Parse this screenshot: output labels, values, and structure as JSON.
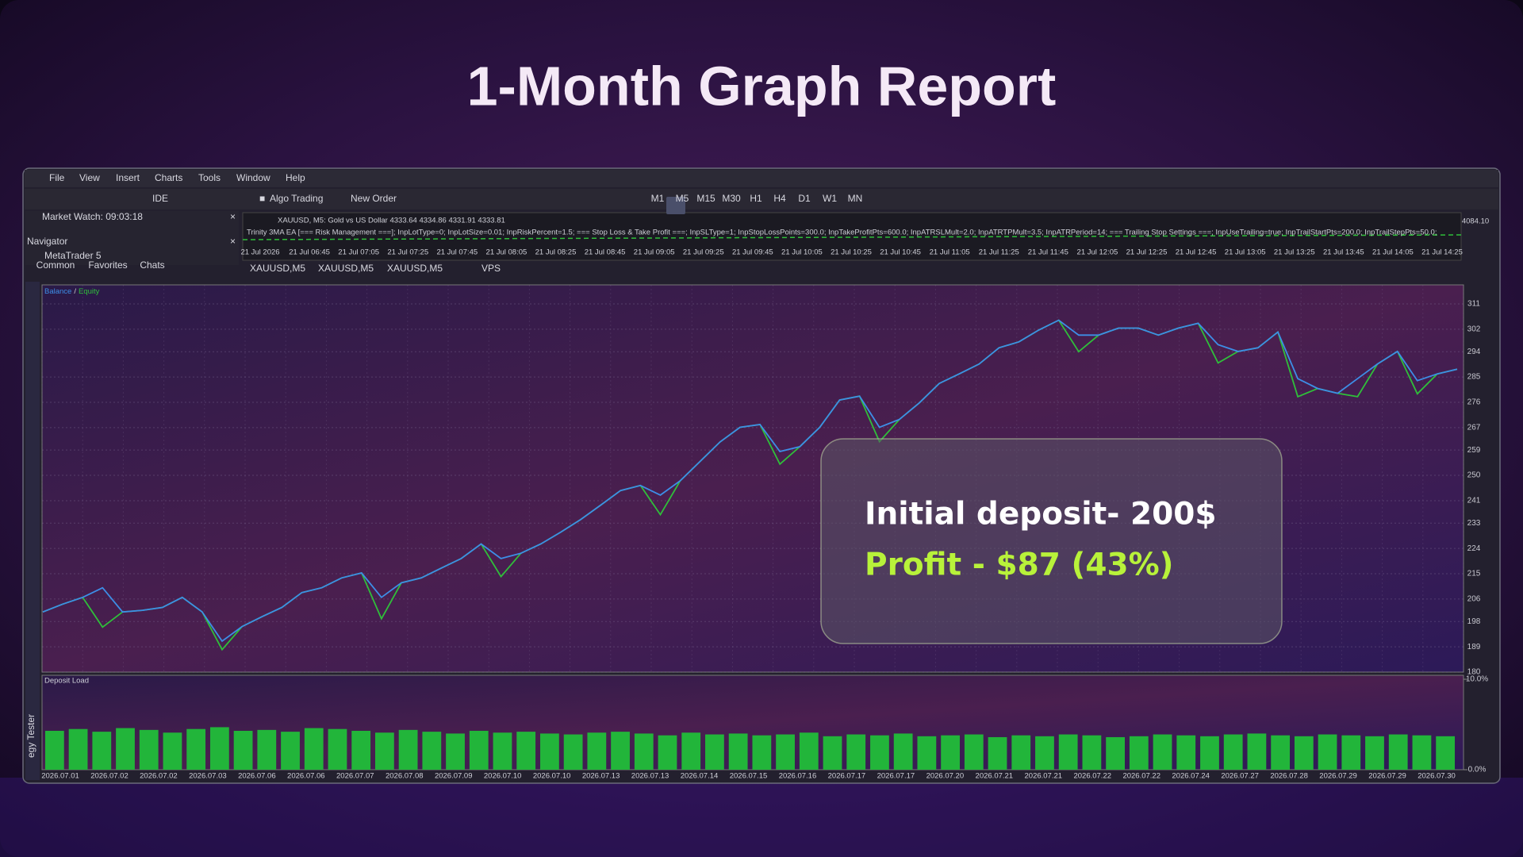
{
  "header": {
    "title": "1-Month Graph Report"
  },
  "menu": [
    "File",
    "View",
    "Insert",
    "Charts",
    "Tools",
    "Window",
    "Help"
  ],
  "toolbar": {
    "ide": "IDE",
    "algo_trading": "Algo Trading",
    "new_order": "New Order",
    "timeframes": [
      "M1",
      "M5",
      "M15",
      "M30",
      "H1",
      "H4",
      "D1",
      "W1",
      "MN"
    ]
  },
  "left_panel": {
    "market_watch": "Market Watch: 09:03:18",
    "navigator": "Navigator",
    "tree_item": "MetaTrader 5",
    "tabs": [
      "Common",
      "Favorites",
      "Chats"
    ]
  },
  "mini_chart": {
    "header": "XAUUSD, M5:  Gold vs US Dollar  4333.64 4334.86 4331.91 4333.81",
    "ea_params": "Trinity 3MA EA [=== Risk Management ===]; InpLotType=0; InpLotSize=0.01; InpRiskPercent=1.5; === Stop Loss & Take Profit ===; InpSLType=1; InpStopLossPoints=300.0; InpTakeProfitPts=600.0; InpATRSLMult=2.0; InpATRTPMult=3.5; InpATRPeriod=14; === Trailing Stop Settings ===; InpUseTrailing=true; InpTrailStartPts=200.0; InpTrailStepPts=50.0;",
    "price": "4084.10",
    "times": [
      "21 Jul 2026",
      "21 Jul 06:45",
      "21 Jul 07:05",
      "21 Jul 07:25",
      "21 Jul 07:45",
      "21 Jul 08:05",
      "21 Jul 08:25",
      "21 Jul 08:45",
      "21 Jul 09:05",
      "21 Jul 09:25",
      "21 Jul 09:45",
      "21 Jul 10:05",
      "21 Jul 10:25",
      "21 Jul 10:45",
      "21 Jul 11:05",
      "21 Jul 11:25",
      "21 Jul 11:45",
      "21 Jul 12:05",
      "21 Jul 12:25",
      "21 Jul 12:45",
      "21 Jul 13:05",
      "21 Jul 13:25",
      "21 Jul 13:45",
      "21 Jul 14:05",
      "21 Jul 14:25"
    ]
  },
  "chart_tabs": [
    "XAUUSD,M5",
    "XAUUSD,M5",
    "XAUUSD,M5",
    "VPS"
  ],
  "side_label": "egy Tester",
  "balance_chart": {
    "type": "line",
    "legend_separator": "/",
    "series": [
      {
        "name": "Balance",
        "color": "#3d8ee6",
        "values": [
          201.4,
          204.2,
          206.6,
          210,
          201.4,
          202,
          203,
          206.6,
          201.4,
          191,
          196.2,
          199.7,
          203,
          208.3,
          210,
          213.5,
          215.3,
          206.6,
          211.8,
          213.5,
          217,
          220.4,
          225.6,
          220.4,
          222.3,
          225.6,
          229.8,
          234.3,
          239.4,
          244.6,
          246.4,
          243,
          248.1,
          255,
          261.9,
          267.1,
          268.1,
          258.5,
          260.2,
          267.1,
          276.8,
          278.2,
          267.1,
          269.9,
          275.8,
          282.7,
          286.1,
          289.6,
          295.4,
          297.5,
          301.7,
          305.2,
          299.9,
          299.9,
          302.4,
          302.4,
          299.9,
          302.4,
          304.1,
          296.5,
          294.1,
          295.4,
          301,
          284.4,
          280.9,
          279.2,
          284.4,
          289.6,
          294.1,
          283.7,
          286.1,
          287.8
        ]
      },
      {
        "name": "Equity",
        "color": "#2fbf3a",
        "values": [
          201.4,
          204.2,
          206.6,
          196,
          201.4,
          202,
          203,
          206.6,
          201.4,
          188,
          196.2,
          199.7,
          203,
          208.3,
          210,
          213.5,
          215.3,
          199,
          211.8,
          213.5,
          217,
          220.4,
          225.6,
          214,
          222.3,
          225.6,
          229.8,
          234.3,
          239.4,
          244.6,
          246.4,
          236,
          248.1,
          255,
          261.9,
          267.1,
          268.1,
          254,
          260.2,
          267.1,
          276.8,
          278.2,
          262,
          269.9,
          275.8,
          282.7,
          286.1,
          289.6,
          295.4,
          297.5,
          301.7,
          305.2,
          294,
          299.9,
          302.4,
          302.4,
          299.9,
          302.4,
          304.1,
          290,
          294.1,
          295.4,
          301,
          278,
          280.9,
          279.2,
          278,
          289.6,
          294.1,
          279,
          286.1,
          287.8
        ]
      }
    ],
    "ylim": [
      180,
      311
    ],
    "yticks": [
      180,
      189,
      198,
      206,
      215,
      224,
      233,
      241,
      250,
      259,
      267,
      276,
      285,
      294,
      302,
      311
    ],
    "grid": true
  },
  "deposit_chart": {
    "type": "bar",
    "title": "Deposit Load",
    "color": "#22b53a",
    "values": [
      4.3,
      4.5,
      4.2,
      4.6,
      4.4,
      4.1,
      4.5,
      4.7,
      4.3,
      4.4,
      4.2,
      4.6,
      4.5,
      4.3,
      4.1,
      4.4,
      4.2,
      4.0,
      4.3,
      4.1,
      4.2,
      4.0,
      3.9,
      4.1,
      4.2,
      4.0,
      3.8,
      4.1,
      3.9,
      4.0,
      3.8,
      3.9,
      4.1,
      3.7,
      3.9,
      3.8,
      4.0,
      3.7,
      3.8,
      3.9,
      3.6,
      3.8,
      3.7,
      3.9,
      3.8,
      3.6,
      3.7,
      3.9,
      3.8,
      3.7,
      3.9,
      4.0,
      3.8,
      3.7,
      3.9,
      3.8,
      3.7,
      3.9,
      3.8,
      3.7
    ],
    "ylim": [
      0,
      10
    ],
    "yticks": [
      {
        "value": 0,
        "label": "0.0%"
      },
      {
        "value": 10,
        "label": "10.0%"
      }
    ],
    "x_labels": [
      "2026.07.01",
      "2026.07.02",
      "2026.07.02",
      "2026.07.03",
      "2026.07.06",
      "2026.07.06",
      "2026.07.07",
      "2026.07.08",
      "2026.07.09",
      "2026.07.10",
      "2026.07.10",
      "2026.07.13",
      "2026.07.13",
      "2026.07.14",
      "2026.07.15",
      "2026.07.16",
      "2026.07.17",
      "2026.07.17",
      "2026.07.20",
      "2026.07.21",
      "2026.07.21",
      "2026.07.22",
      "2026.07.22",
      "2026.07.24",
      "2026.07.27",
      "2026.07.28",
      "2026.07.29",
      "2026.07.29",
      "2026.07.30"
    ]
  },
  "card": {
    "initial": "Initial deposit- 200$",
    "profit": "Profit - $87 (43%)"
  }
}
